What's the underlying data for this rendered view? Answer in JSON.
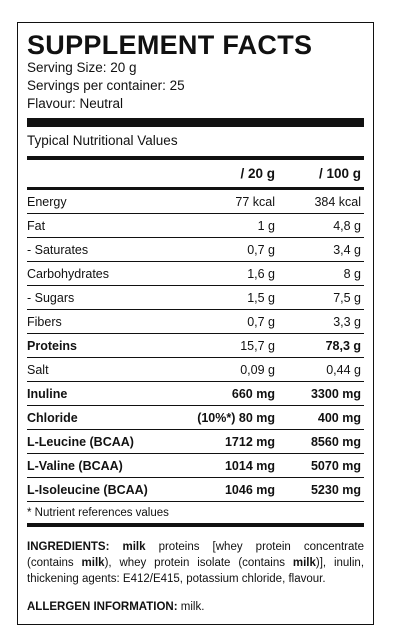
{
  "title": "SUPPLEMENT FACTS",
  "serving_size": "Serving Size: 20 g",
  "servings_per_container": "Servings per container: 25",
  "flavour": "Flavour: Neutral",
  "typical_label": "Typical Nutritional Values",
  "columns": [
    "",
    "/ 20 g",
    "/ 100 g"
  ],
  "rows": [
    {
      "name": "Energy",
      "v1": "77 kcal",
      "v2": "384 kcal",
      "bold": false
    },
    {
      "name": "Fat",
      "v1": "1 g",
      "v2": "4,8 g",
      "bold": false
    },
    {
      "name": "- Saturates",
      "v1": "0,7 g",
      "v2": "3,4 g",
      "bold": false
    },
    {
      "name": "Carbohydrates",
      "v1": "1,6 g",
      "v2": "8 g",
      "bold": false
    },
    {
      "name": "- Sugars",
      "v1": "1,5 g",
      "v2": "7,5 g",
      "bold": false
    },
    {
      "name": "Fibers",
      "v1": "0,7 g",
      "v2": "3,3 g",
      "bold": false
    },
    {
      "name": "Proteins",
      "v1": "15,7 g",
      "v2": "78,3  g",
      "bold": "partial"
    },
    {
      "name": "Salt",
      "v1": "0,09 g",
      "v2": "0,44 g",
      "bold": false
    },
    {
      "name": "Inuline",
      "v1": "660 mg",
      "v2": "3300 mg",
      "bold": true
    },
    {
      "name": "Chloride",
      "v1": "(10%*) 80 mg",
      "v2": "400 mg",
      "bold": true
    },
    {
      "name": "L-Leucine (BCAA)",
      "v1": "1712 mg",
      "v2": "8560 mg",
      "bold": true
    },
    {
      "name": "L-Valine (BCAA)",
      "v1": "1014 mg",
      "v2": "5070 mg",
      "bold": true
    },
    {
      "name": "L-Isoleucine (BCAA)",
      "v1": "1046 mg",
      "v2": "5230 mg",
      "bold": true
    }
  ],
  "note": "* Nutrient references values",
  "ingredients": {
    "label": "INGREDIENTS:",
    "parts": [
      {
        "t": " ",
        "b": false
      },
      {
        "t": "milk",
        "b": true
      },
      {
        "t": " proteins [whey protein concentrate (contains ",
        "b": false
      },
      {
        "t": "milk",
        "b": true
      },
      {
        "t": "), whey protein isolate (contains ",
        "b": false
      },
      {
        "t": "milk",
        "b": true
      },
      {
        "t": ")], inulin, thickening agents: E412/E415, potassium chloride, flavour.",
        "b": false
      }
    ]
  },
  "allergen": {
    "label": "ALLERGEN INFORMATION:",
    "value": " milk."
  }
}
